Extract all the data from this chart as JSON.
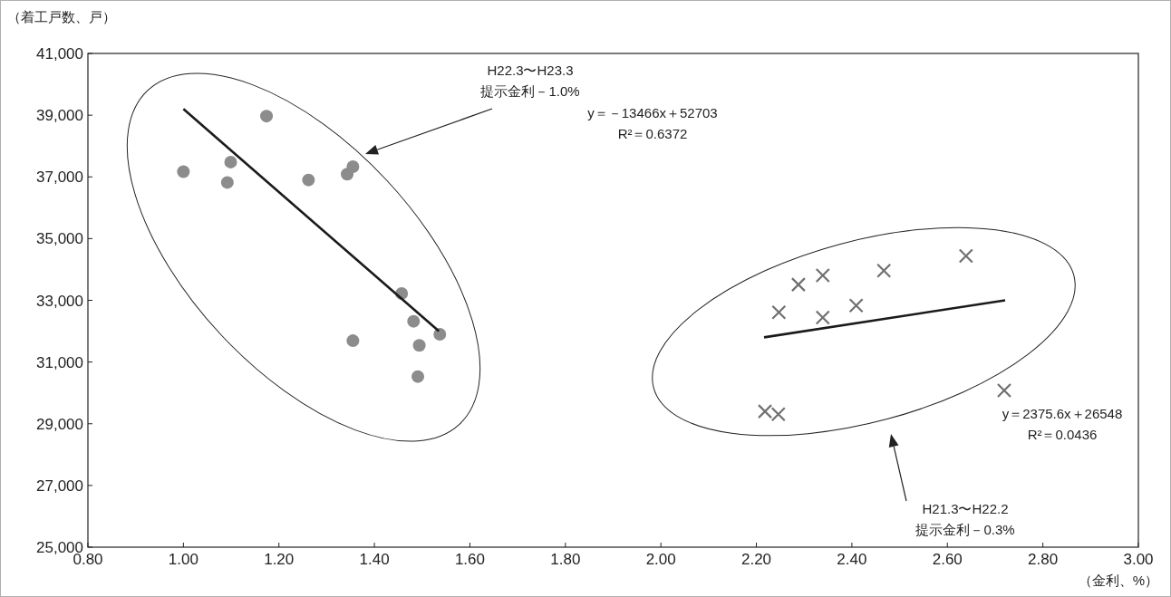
{
  "chart_data": {
    "type": "scatter",
    "ylabel": "（着工戸数、戸）",
    "xlabel": "（金利、%）",
    "xlim": [
      0.8,
      3.0
    ],
    "xticks": [
      {
        "value": 0.8,
        "label": "0.80"
      },
      {
        "value": 1.0,
        "label": "1.00"
      },
      {
        "value": 1.2,
        "label": "1.20"
      },
      {
        "value": 1.4,
        "label": "1.40"
      },
      {
        "value": 1.6,
        "label": "1.60"
      },
      {
        "value": 1.8,
        "label": "1.80"
      },
      {
        "value": 2.0,
        "label": "2.00"
      },
      {
        "value": 2.2,
        "label": "2.20"
      },
      {
        "value": 2.4,
        "label": "2.40"
      },
      {
        "value": 2.6,
        "label": "2.60"
      },
      {
        "value": 2.8,
        "label": "2.80"
      },
      {
        "value": 3.0,
        "label": "3.00"
      }
    ],
    "ylim": [
      25000,
      41000
    ],
    "yticks": [
      {
        "value": 25000,
        "label": "25,000"
      },
      {
        "value": 27000,
        "label": "27,000"
      },
      {
        "value": 29000,
        "label": "29,000"
      },
      {
        "value": 31000,
        "label": "31,000"
      },
      {
        "value": 33000,
        "label": "33,000"
      },
      {
        "value": 35000,
        "label": "35,000"
      },
      {
        "value": 37000,
        "label": "37,000"
      },
      {
        "value": 39000,
        "label": "39,000"
      },
      {
        "value": 41000,
        "label": "41,000"
      }
    ],
    "series": [
      {
        "marker": "circle",
        "color": "#8c8c8c",
        "x": [
          1.0,
          1.174,
          1.099,
          1.092,
          1.262,
          1.355,
          1.343,
          1.457,
          1.482,
          1.537,
          1.355,
          1.494,
          1.491
        ],
        "values": [
          37170,
          38970,
          37480,
          36820,
          36900,
          37330,
          37090,
          33220,
          32320,
          31900,
          31690,
          31540,
          30530
        ]
      },
      {
        "marker": "cross",
        "color": "#707070",
        "x": [
          2.639,
          2.467,
          2.339,
          2.288,
          2.247,
          2.339,
          2.409,
          2.719,
          2.218,
          2.246
        ],
        "values": [
          34440,
          33960,
          33810,
          33510,
          32610,
          32440,
          32830,
          30080,
          29400,
          29310
        ]
      },
      {
        "type": "line",
        "color": "#1a1a1a",
        "x": [
          1.0,
          1.535
        ],
        "values": [
          39200,
          32000
        ]
      },
      {
        "type": "line",
        "color": "#1a1a1a",
        "x": [
          2.216,
          2.721
        ],
        "values": [
          31800,
          33000
        ]
      }
    ],
    "annotations": [
      "H22.3〜H23.3\n提示金利－1.0%",
      "y＝－13466x＋52703\nR²＝0.6372",
      "y＝2375.6x＋26548\nR²＝0.0436",
      "H21.3〜H22.2\n提示金利－0.3%"
    ]
  }
}
